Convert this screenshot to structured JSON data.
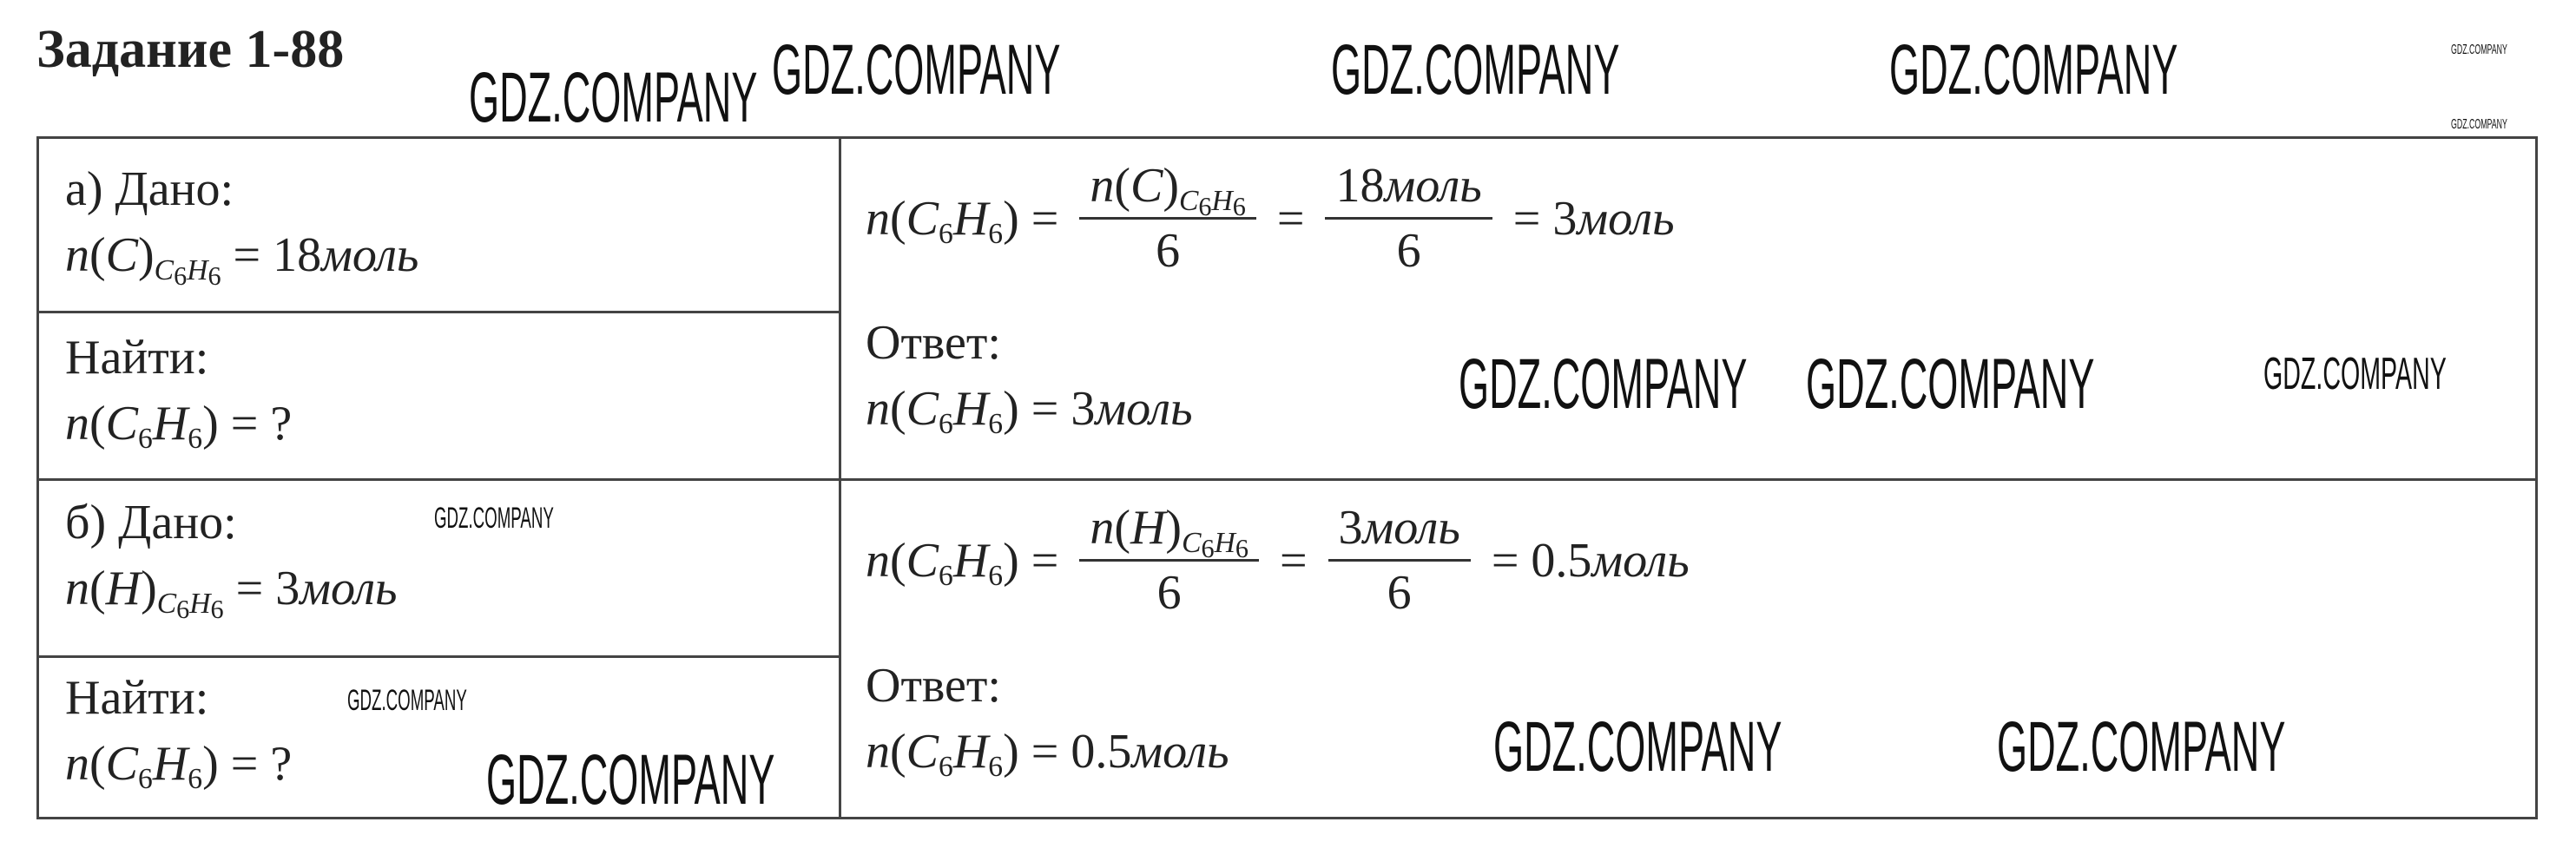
{
  "title": "Задание 1-88",
  "parts": [
    {
      "given_label": "а) Дано:",
      "given": [
        "n(C)_{C_6H_6} = 18моль"
      ],
      "find_label": "Найти:",
      "find": [
        "n(C_6H_6) = ?"
      ],
      "solution": [
        "n(C_6H_6) =",
        {
          "num": "n(C)_{C_6H_6}",
          "den": "6"
        },
        "=",
        {
          "num": "18моль",
          "den": "6"
        },
        "= 3моль"
      ],
      "answer_label": "Ответ:",
      "answer": [
        "n(C_6H_6) = 3моль"
      ]
    },
    {
      "given_label": "б) Дано:",
      "given": [
        "n(H)_{C_6H_6} = 3моль"
      ],
      "find_label": "Найти:",
      "find": [
        "n(C_6H_6) = ?"
      ],
      "solution": [
        "n(C_6H_6) =",
        {
          "num": "n(H)_{C_6H_6}",
          "den": "6"
        },
        "=",
        {
          "num": "3моль",
          "den": "6"
        },
        "= 0.5моль"
      ],
      "answer_label": "Ответ:",
      "answer": [
        "n(C_6H_6) = 0.5моль"
      ]
    }
  ],
  "watermark": "GDZ.COMPANY"
}
